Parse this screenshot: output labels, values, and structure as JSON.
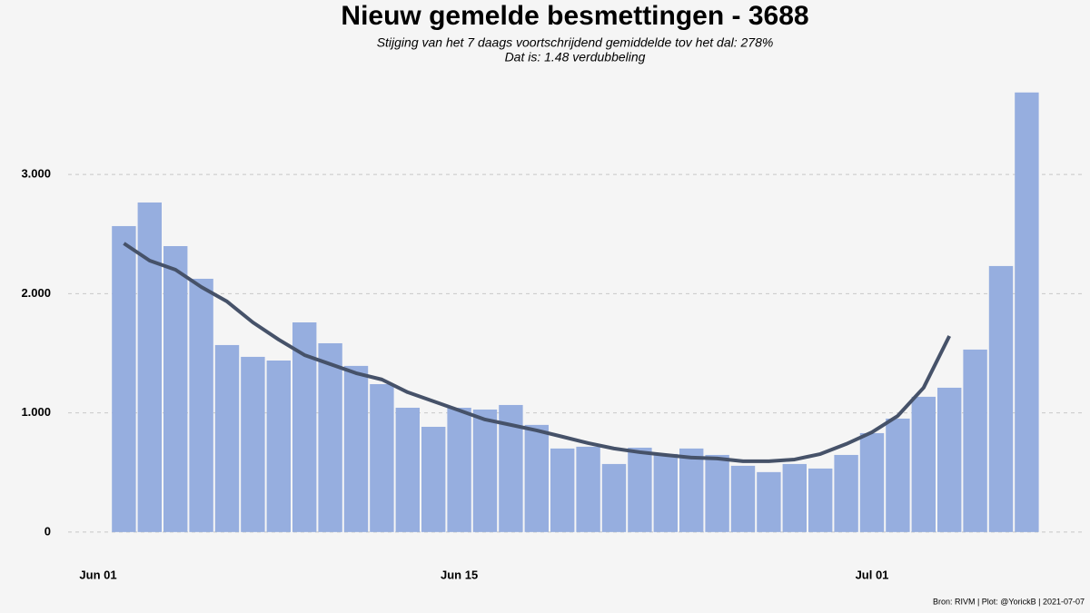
{
  "chart_data": {
    "type": "bar",
    "title": "Nieuw gemelde besmettingen  -   3688",
    "subtitle": [
      "Stijging van het 7 daags voortschrijdend gemiddelde tov het dal: 278%",
      "Dat is: 1.48 verdubbeling"
    ],
    "caption": "Bron: RIVM | Plot: @YorickB |  2021-07-07",
    "x": [
      "Jun 02",
      "Jun 03",
      "Jun 04",
      "Jun 05",
      "Jun 06",
      "Jun 07",
      "Jun 08",
      "Jun 09",
      "Jun 10",
      "Jun 11",
      "Jun 12",
      "Jun 13",
      "Jun 14",
      "Jun 15",
      "Jun 16",
      "Jun 17",
      "Jun 18",
      "Jun 19",
      "Jun 20",
      "Jun 21",
      "Jun 22",
      "Jun 23",
      "Jun 24",
      "Jun 25",
      "Jun 26",
      "Jun 27",
      "Jun 28",
      "Jun 29",
      "Jun 30",
      "Jul 01",
      "Jul 02",
      "Jul 03",
      "Jul 04",
      "Jul 05",
      "Jul 06",
      "Jul 07"
    ],
    "series": [
      {
        "type": "bar",
        "color": "#96aedf",
        "values": [
          2567,
          2765,
          2399,
          2125,
          1569,
          1470,
          1439,
          1759,
          1584,
          1394,
          1241,
          1043,
          883,
          1043,
          1028,
          1066,
          899,
          701,
          716,
          571,
          708,
          655,
          701,
          647,
          556,
          503,
          571,
          533,
          647,
          830,
          952,
          1135,
          1211,
          1531,
          2232,
          3688
        ]
      },
      {
        "type": "line",
        "color": "#465269",
        "values": [
          2422,
          2277,
          2201,
          2056,
          1934,
          1759,
          1615,
          1485,
          1409,
          1333,
          1280,
          1173,
          1097,
          1021,
          944,
          899,
          853,
          800,
          746,
          701,
          670,
          647,
          625,
          617,
          594,
          594,
          609,
          655,
          739,
          838,
          975,
          1211,
          1645,
          null,
          null,
          null
        ]
      }
    ],
    "xticks": [
      "Jun 01",
      "Jun 15",
      "Jul 01"
    ],
    "ylim": [
      -100,
      3740
    ],
    "yticks": [
      0,
      {
        "value": 1000,
        "label": "1.000"
      },
      {
        "value": 2000,
        "label": "2.000"
      },
      {
        "value": 3000,
        "label": "3.000"
      }
    ],
    "grid": true
  }
}
